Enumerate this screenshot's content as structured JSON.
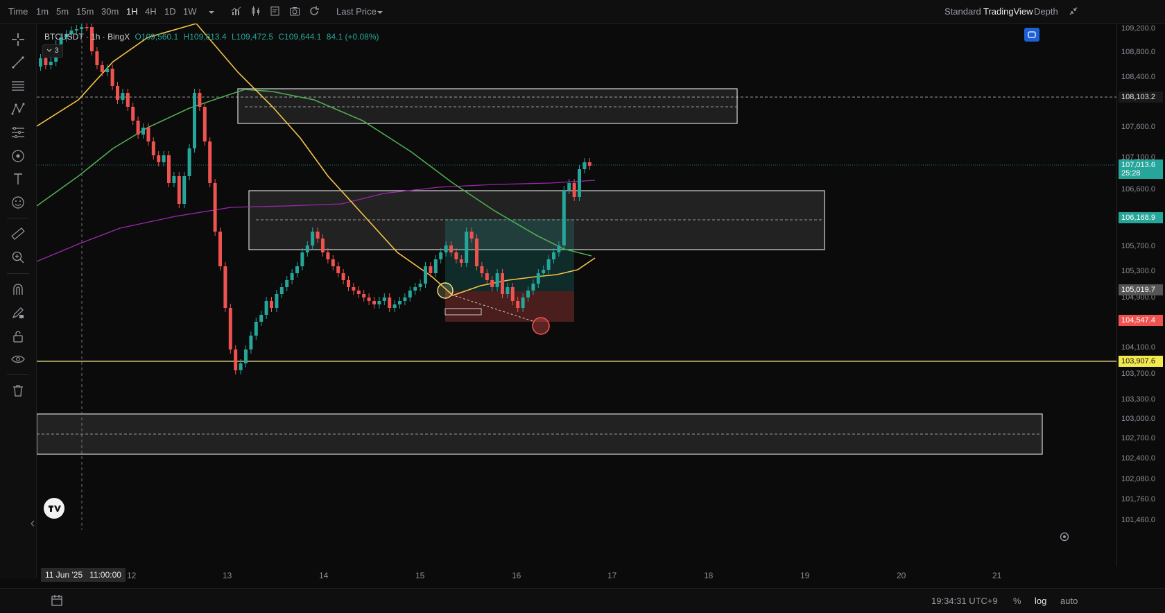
{
  "toolbar": {
    "time_label": "Time",
    "intervals": [
      "1m",
      "5m",
      "15m",
      "30m",
      "1H",
      "4H",
      "1D",
      "1W"
    ],
    "active_interval": "1H",
    "price_source": "Last Price",
    "modes": [
      "Standard",
      "TradingView",
      "Depth"
    ],
    "active_mode": "TradingView"
  },
  "legend": {
    "symbol": "BTCUSDT · 1h · BingX",
    "open": "O109,560.1",
    "high": "H109,813.4",
    "low": "L109,472.5",
    "close": "C109,644.1",
    "change": "84.1 (+0.08%)",
    "collapsed_count": "3"
  },
  "price_axis": {
    "labels": [
      "109,200.0",
      "108,800.0",
      "108,400.0",
      "108,103.2",
      "107,600.0",
      "107,100.0",
      "106,600.0",
      "106,168.9",
      "105,700.0",
      "105,300.0",
      "105,019.7",
      "104,900.0",
      "104,547.4",
      "104,100.0",
      "103,907.6",
      "103,700.0",
      "103,300.0",
      "103,000.0",
      "102,700.0",
      "102,400.0",
      "102,080.0",
      "101,760.0",
      "101,460.0"
    ],
    "tags": {
      "level_top": "108,103.2",
      "current_price": "107,013.6",
      "countdown": "25:28",
      "take_profit": "106,168.9",
      "entry": "105,019.7",
      "stop_loss": "104,547.4",
      "support_line": "103,907.6"
    }
  },
  "time_axis": {
    "cursor_label": "11 Jun '25   11:00:00",
    "labels": [
      "12",
      "13",
      "14",
      "15",
      "16",
      "17",
      "18",
      "19",
      "20",
      "21"
    ]
  },
  "bottom": {
    "clock": "19:34:31 UTC+9",
    "percent": "%",
    "log": "log",
    "auto": "auto"
  },
  "colors": {
    "up": "#26a69a",
    "down": "#ef5350",
    "ema_fast": "#f7c548",
    "ema_slow": "#4caf50",
    "ema_long": "#9c27b0",
    "support": "#f0e68c"
  },
  "icons": {
    "left_toolbar": [
      "crosshair-icon",
      "trendline-icon",
      "horizontal-lines-icon",
      "pattern-icon",
      "fib-icon",
      "brush-icon",
      "text-icon",
      "emoji-icon",
      "ruler-icon",
      "zoom-icon",
      "magnet-icon",
      "lock-draw-icon",
      "lock-icon",
      "eye-icon",
      "trash-icon"
    ]
  }
}
